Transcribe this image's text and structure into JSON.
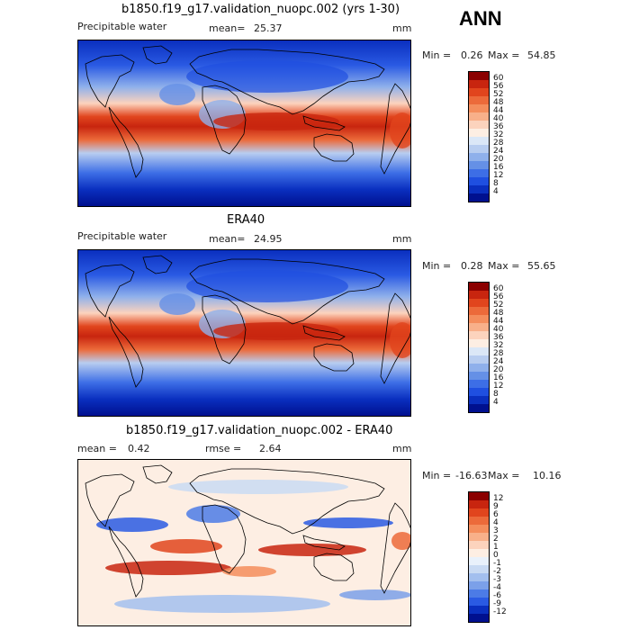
{
  "season": "ANN",
  "panels": [
    {
      "title": "b1850.f19_g17.validation_nuopc.002 (yrs 1-30)",
      "variable": "Precipitable water",
      "mean_label": "mean=",
      "mean_value": "25.37",
      "units": "mm",
      "min_label": "Min =",
      "min_value": "0.26",
      "max_label": "Max =",
      "max_value": "54.85",
      "colorbar_labels": [
        "60",
        "56",
        "52",
        "48",
        "44",
        "40",
        "36",
        "32",
        "28",
        "24",
        "20",
        "16",
        "12",
        "8",
        "4"
      ]
    },
    {
      "title": "ERA40",
      "variable": "Precipitable water",
      "mean_label": "mean=",
      "mean_value": "24.95",
      "units": "mm",
      "min_label": "Min =",
      "min_value": "0.28",
      "max_label": "Max =",
      "max_value": "55.65",
      "colorbar_labels": [
        "60",
        "56",
        "52",
        "48",
        "44",
        "40",
        "36",
        "32",
        "28",
        "24",
        "20",
        "16",
        "12",
        "8",
        "4"
      ]
    },
    {
      "title": "b1850.f19_g17.validation_nuopc.002 - ERA40",
      "mean_label": "mean =",
      "mean_value": "0.42",
      "rmse_label": "rmse =",
      "rmse_value": "2.64",
      "units": "mm",
      "min_label": "Min =",
      "min_value": "-16.63",
      "max_label": "Max =",
      "max_value": "10.16",
      "colorbar_labels": [
        "12",
        "9",
        "6",
        "4",
        "3",
        "2",
        "1",
        "0",
        "-1",
        "-2",
        "-3",
        "-4",
        "-6",
        "-9",
        "-12"
      ]
    }
  ],
  "colors": {
    "abs_scale": [
      "#8b0000",
      "#c8250f",
      "#e1451d",
      "#ec6a3a",
      "#f48d5c",
      "#f8b08a",
      "#fcd3bd",
      "#fdeee3",
      "#dbe7f7",
      "#b8cdf0",
      "#8fb0eb",
      "#6590e6",
      "#3d6ee6",
      "#1f4fe0",
      "#0a2fbf",
      "#00108f"
    ],
    "diff_scale": [
      "#8b0000",
      "#c8250f",
      "#e1451d",
      "#ec6a3a",
      "#f48d5c",
      "#f8b08a",
      "#fcd3bd",
      "#fdeee3",
      "#e9f1fb",
      "#c9daf3",
      "#a3bfee",
      "#7ba0e9",
      "#4c7be6",
      "#2a5ae3",
      "#0a2fbf",
      "#00108f"
    ]
  }
}
